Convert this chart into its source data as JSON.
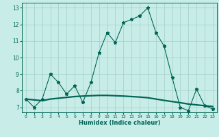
{
  "title": "",
  "xlabel": "Humidex (Indice chaleur)",
  "background_color": "#c8ece8",
  "grid_color": "#a0d0c8",
  "line_color": "#006655",
  "xlim": [
    -0.5,
    23.5
  ],
  "ylim": [
    6.7,
    13.3
  ],
  "yticks": [
    7,
    8,
    9,
    10,
    11,
    12,
    13
  ],
  "xticks": [
    0,
    1,
    2,
    3,
    4,
    5,
    6,
    7,
    8,
    9,
    10,
    11,
    12,
    13,
    14,
    15,
    16,
    17,
    18,
    19,
    20,
    21,
    22,
    23
  ],
  "line1_x": [
    0,
    1,
    2,
    3,
    4,
    5,
    6,
    7,
    8,
    9,
    10,
    11,
    12,
    13,
    14,
    15,
    16,
    17,
    18,
    19,
    20,
    21,
    22,
    23
  ],
  "line1_y": [
    7.5,
    7.0,
    7.5,
    9.0,
    8.5,
    7.8,
    8.3,
    7.3,
    8.5,
    10.3,
    11.5,
    10.9,
    12.1,
    12.3,
    12.5,
    13.0,
    11.5,
    10.7,
    8.8,
    7.0,
    6.8,
    8.1,
    7.1,
    6.9
  ],
  "line2_x": [
    0,
    1,
    2,
    3,
    4,
    5,
    6,
    7,
    8,
    9,
    10,
    11,
    12,
    13,
    14,
    15,
    16,
    17,
    18,
    19,
    20,
    21,
    22,
    23
  ],
  "line2_y": [
    7.5,
    7.45,
    7.4,
    7.5,
    7.55,
    7.6,
    7.65,
    7.68,
    7.7,
    7.72,
    7.72,
    7.7,
    7.68,
    7.65,
    7.62,
    7.58,
    7.5,
    7.42,
    7.35,
    7.28,
    7.2,
    7.15,
    7.1,
    7.05
  ]
}
